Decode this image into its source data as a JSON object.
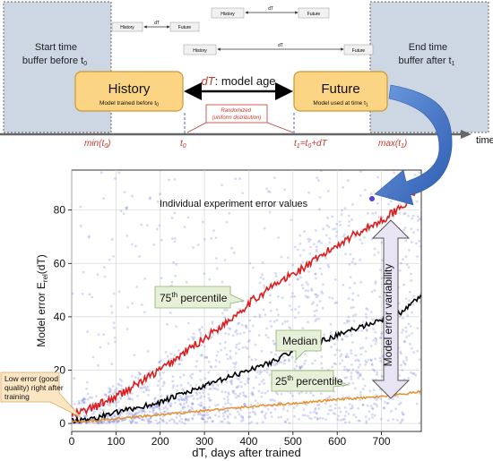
{
  "timeline": {
    "start_buffer": [
      "Start time",
      "buffer before t"
    ],
    "start_buffer_sub": "0",
    "end_buffer": [
      "End time",
      "buffer after t"
    ],
    "end_buffer_sub": "1",
    "mini_rows": [
      {
        "left": "History",
        "mid": "dT",
        "right": "Future"
      },
      {
        "left": "History",
        "mid": "dT",
        "right": "Future"
      },
      {
        "left": "History",
        "mid": "dT",
        "right": "Future"
      },
      {
        "left": "History",
        "mid": "dT",
        "right": "Future"
      }
    ],
    "history": {
      "title": "History",
      "desc": "Model trained before t",
      "desc_sub": "0"
    },
    "future": {
      "title": "Future",
      "desc": "Model used at time t",
      "desc_sub": "1"
    },
    "dt_label": "dT",
    "dt_suffix": ": model age",
    "randomized": [
      "Randomized",
      "(uniform distribution)"
    ],
    "axis_label": "time",
    "ticks": {
      "min": "min(t",
      "min_sub": "0",
      "t0": "t",
      "t0_sub": "0",
      "t1": "t",
      "t1_sub": "1",
      "t1_rest": "=t",
      "t1_rest_sub": "0",
      "t1_tail": "+dT",
      "max": "max(t",
      "max_sub": "1"
    }
  },
  "callouts": {
    "individual": "Individual experiment error values",
    "p75": "75",
    "p75_sup": "th",
    "p75_rest": " percentile",
    "median": "Median",
    "p25": "25",
    "p25_sup": "th",
    "p25_rest": " percentile",
    "variability": "Model error variability",
    "low_error": [
      "Low error (good",
      "quality) right after",
      "training"
    ]
  },
  "chart_data": {
    "type": "scatter",
    "xlabel": "dT, days after trained",
    "ylabel": "Model error E",
    "ylabel_sub": "rel",
    "ylabel_tail": "(dT)",
    "xlim": [
      0,
      790
    ],
    "ylim": [
      -3,
      95
    ],
    "x_ticks": [
      0,
      100,
      200,
      300,
      400,
      500,
      600,
      700
    ],
    "y_ticks": [
      0,
      20,
      40,
      60,
      80
    ],
    "grid": true,
    "series": [
      {
        "name": "75th percentile",
        "color": "#dd1c1c",
        "x": [
          0,
          50,
          100,
          150,
          200,
          250,
          300,
          350,
          400,
          450,
          500,
          550,
          600,
          650,
          700,
          750,
          780
        ],
        "y": [
          3,
          6,
          10,
          15,
          20,
          26,
          32,
          38,
          45,
          51,
          56,
          61,
          67,
          72,
          76,
          82,
          88
        ]
      },
      {
        "name": "Median",
        "color": "#000000",
        "x": [
          0,
          50,
          100,
          150,
          200,
          250,
          300,
          350,
          400,
          450,
          500,
          550,
          600,
          650,
          700,
          750,
          790
        ],
        "y": [
          1,
          2,
          4,
          6,
          8,
          11,
          14,
          17,
          20,
          23,
          27,
          30,
          33,
          36,
          39,
          42,
          48
        ]
      },
      {
        "name": "25th percentile",
        "color": "#e8902a",
        "x": [
          0,
          50,
          100,
          150,
          200,
          250,
          300,
          350,
          400,
          450,
          500,
          550,
          600,
          650,
          700,
          750,
          790
        ],
        "y": [
          0.5,
          1,
          1.8,
          2.5,
          3.2,
          4,
          4.8,
          5.5,
          6.2,
          7,
          7.5,
          8.2,
          9,
          9.5,
          10,
          11,
          12
        ]
      }
    ],
    "scatter_color": "#4a55d8"
  },
  "colors": {
    "buffer_fill": "#cdd7e4",
    "box_fill": "#fcd584",
    "box_stroke": "#c99a33",
    "accent_red": "#c0392b",
    "arrow_blue": "#3c6ec2"
  }
}
